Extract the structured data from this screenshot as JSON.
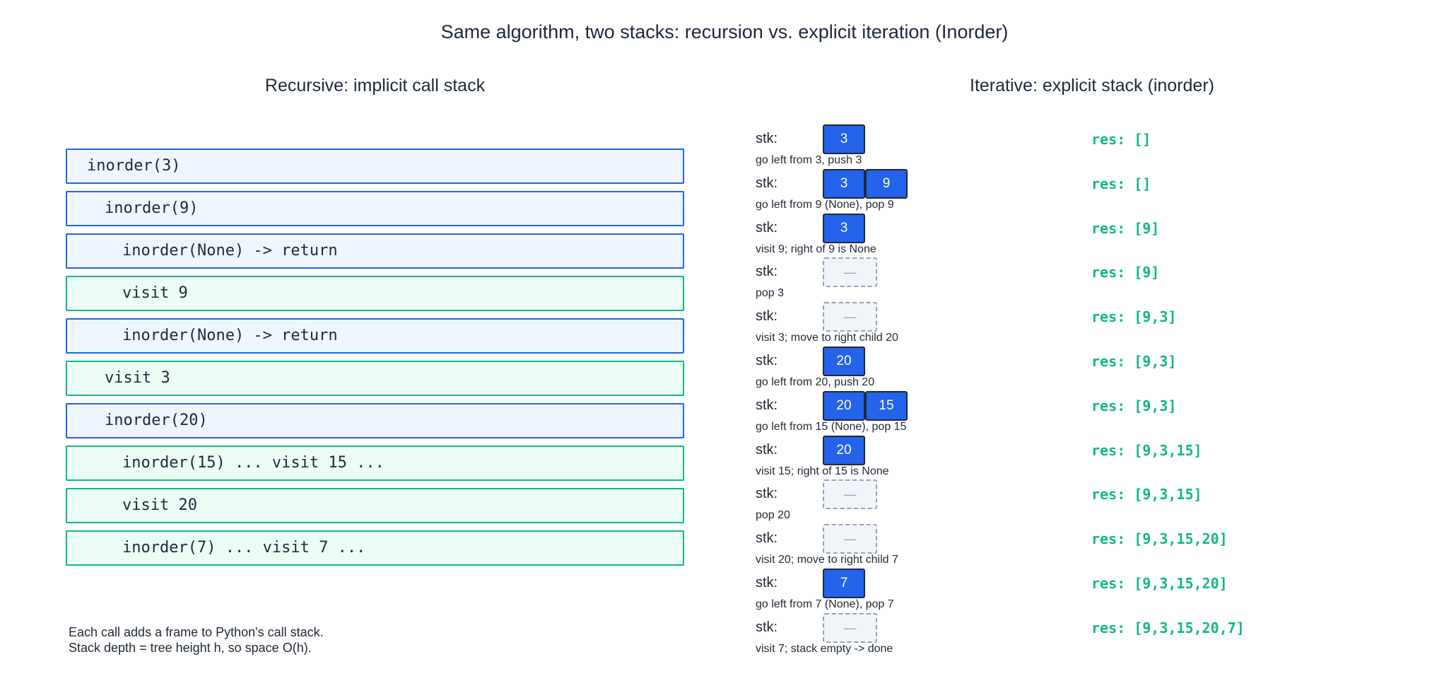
{
  "title": "Same algorithm, two stacks: recursion vs. explicit iteration (Inorder)",
  "left_panel": {
    "title": "Recursive: implicit call stack",
    "frames": [
      {
        "text": "inorder(3)",
        "depth": 0,
        "kind": "call"
      },
      {
        "text": "inorder(9)",
        "depth": 1,
        "kind": "call"
      },
      {
        "text": "inorder(None) -> return",
        "depth": 2,
        "kind": "call"
      },
      {
        "text": "visit 9",
        "depth": 2,
        "kind": "visit"
      },
      {
        "text": "inorder(None) -> return",
        "depth": 2,
        "kind": "call"
      },
      {
        "text": "visit 3",
        "depth": 1,
        "kind": "visit"
      },
      {
        "text": "inorder(20)",
        "depth": 1,
        "kind": "call"
      },
      {
        "text": "inorder(15) ... visit 15 ...",
        "depth": 2,
        "kind": "visit"
      },
      {
        "text": "visit 20",
        "depth": 2,
        "kind": "visit"
      },
      {
        "text": "inorder(7) ... visit 7 ...",
        "depth": 2,
        "kind": "visit"
      }
    ],
    "note_lines": [
      "Each call adds a frame to Python's call stack.",
      "Stack depth = tree height h, so space O(h)."
    ]
  },
  "right_panel": {
    "title": "Iterative: explicit stack (inorder)",
    "stack_label": "stk:",
    "empty_symbol": "—",
    "steps": [
      {
        "stack": [
          "3"
        ],
        "caption": "go left from 3, push 3",
        "res": "res: []"
      },
      {
        "stack": [
          "3",
          "9"
        ],
        "caption": "go left from 9 (None), pop 9",
        "res": "res: []"
      },
      {
        "stack": [
          "3"
        ],
        "caption": "visit 9; right of 9 is None",
        "res": "res: [9]"
      },
      {
        "stack": [],
        "caption": "pop 3",
        "res": "res: [9]"
      },
      {
        "stack": [],
        "caption": "visit 3; move to right child 20",
        "res": "res: [9,3]"
      },
      {
        "stack": [
          "20"
        ],
        "caption": "go left from 20, push 20",
        "res": "res: [9,3]"
      },
      {
        "stack": [
          "20",
          "15"
        ],
        "caption": "go left from 15 (None), pop 15",
        "res": "res: [9,3]"
      },
      {
        "stack": [
          "20"
        ],
        "caption": "visit 15; right of 15 is None",
        "res": "res: [9,3,15]"
      },
      {
        "stack": [],
        "caption": "pop 20",
        "res": "res: [9,3,15]"
      },
      {
        "stack": [],
        "caption": "visit 20; move to right child 7",
        "res": "res: [9,3,15,20]"
      },
      {
        "stack": [
          "7"
        ],
        "caption": "go left from 7 (None), pop 7",
        "res": "res: [9,3,15,20]"
      },
      {
        "stack": [],
        "caption": "visit 7; stack empty -> done",
        "res": "res: [9,3,15,20,7]"
      }
    ]
  },
  "colors": {
    "call_border": "#2563eb",
    "call_fill": "#eff6ff",
    "visit_border": "#10b981",
    "visit_fill": "#ecfdf5",
    "stack_cell": "#2563eb",
    "result_text": "#10b981"
  }
}
